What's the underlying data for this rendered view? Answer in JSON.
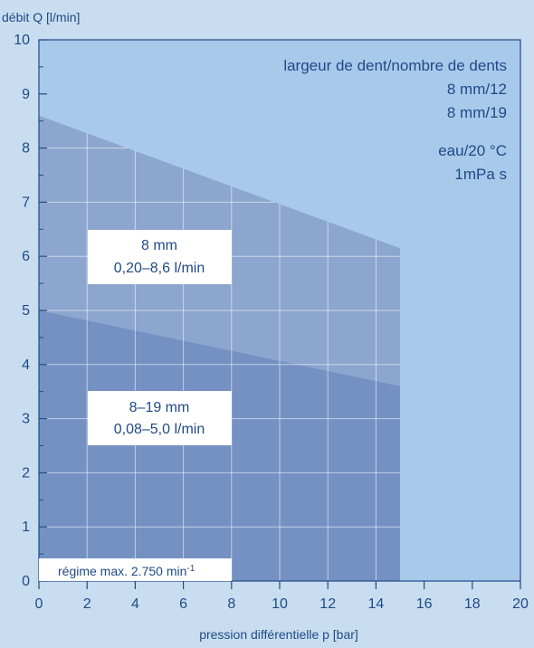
{
  "chart_data": {
    "type": "area",
    "ylabel": "débit Q [l/min]",
    "xlabel": "pression différentielle p [bar]",
    "xlim": [
      0,
      20
    ],
    "ylim": [
      0,
      10
    ],
    "x_ticks": [
      0,
      2,
      4,
      6,
      8,
      10,
      12,
      14,
      16,
      18,
      20
    ],
    "y_ticks": [
      0,
      1,
      2,
      3,
      4,
      5,
      6,
      7,
      8,
      9,
      10
    ],
    "grid": true,
    "series": [
      {
        "name": "8 mm",
        "points": [
          [
            0,
            8.6
          ],
          [
            15,
            6.15
          ],
          [
            15,
            0
          ],
          [
            0,
            0
          ]
        ],
        "range_label": "0,20–8,6 l/min",
        "color": "#8da6cf"
      },
      {
        "name": "8–19 mm",
        "points": [
          [
            0,
            5.0
          ],
          [
            15,
            3.6
          ],
          [
            15,
            0
          ],
          [
            0,
            0
          ]
        ],
        "range_label": "0,08–5,0 l/min",
        "color": "#7591c3"
      }
    ],
    "legend": {
      "header": "largeur de dent/nombre de dents",
      "lines": [
        "8 mm/12",
        "8 mm/19"
      ],
      "medium": "eau/20 °C",
      "viscosity": "1mPa s",
      "position": "top-right"
    },
    "footnote": {
      "text": "régime max. 2.750 min",
      "superscript": "-1"
    },
    "colors": {
      "background": "#c9ddf0",
      "plot_area": "#a9c9eb",
      "axis": "#1f4a86",
      "grid": "#ffffff"
    }
  }
}
